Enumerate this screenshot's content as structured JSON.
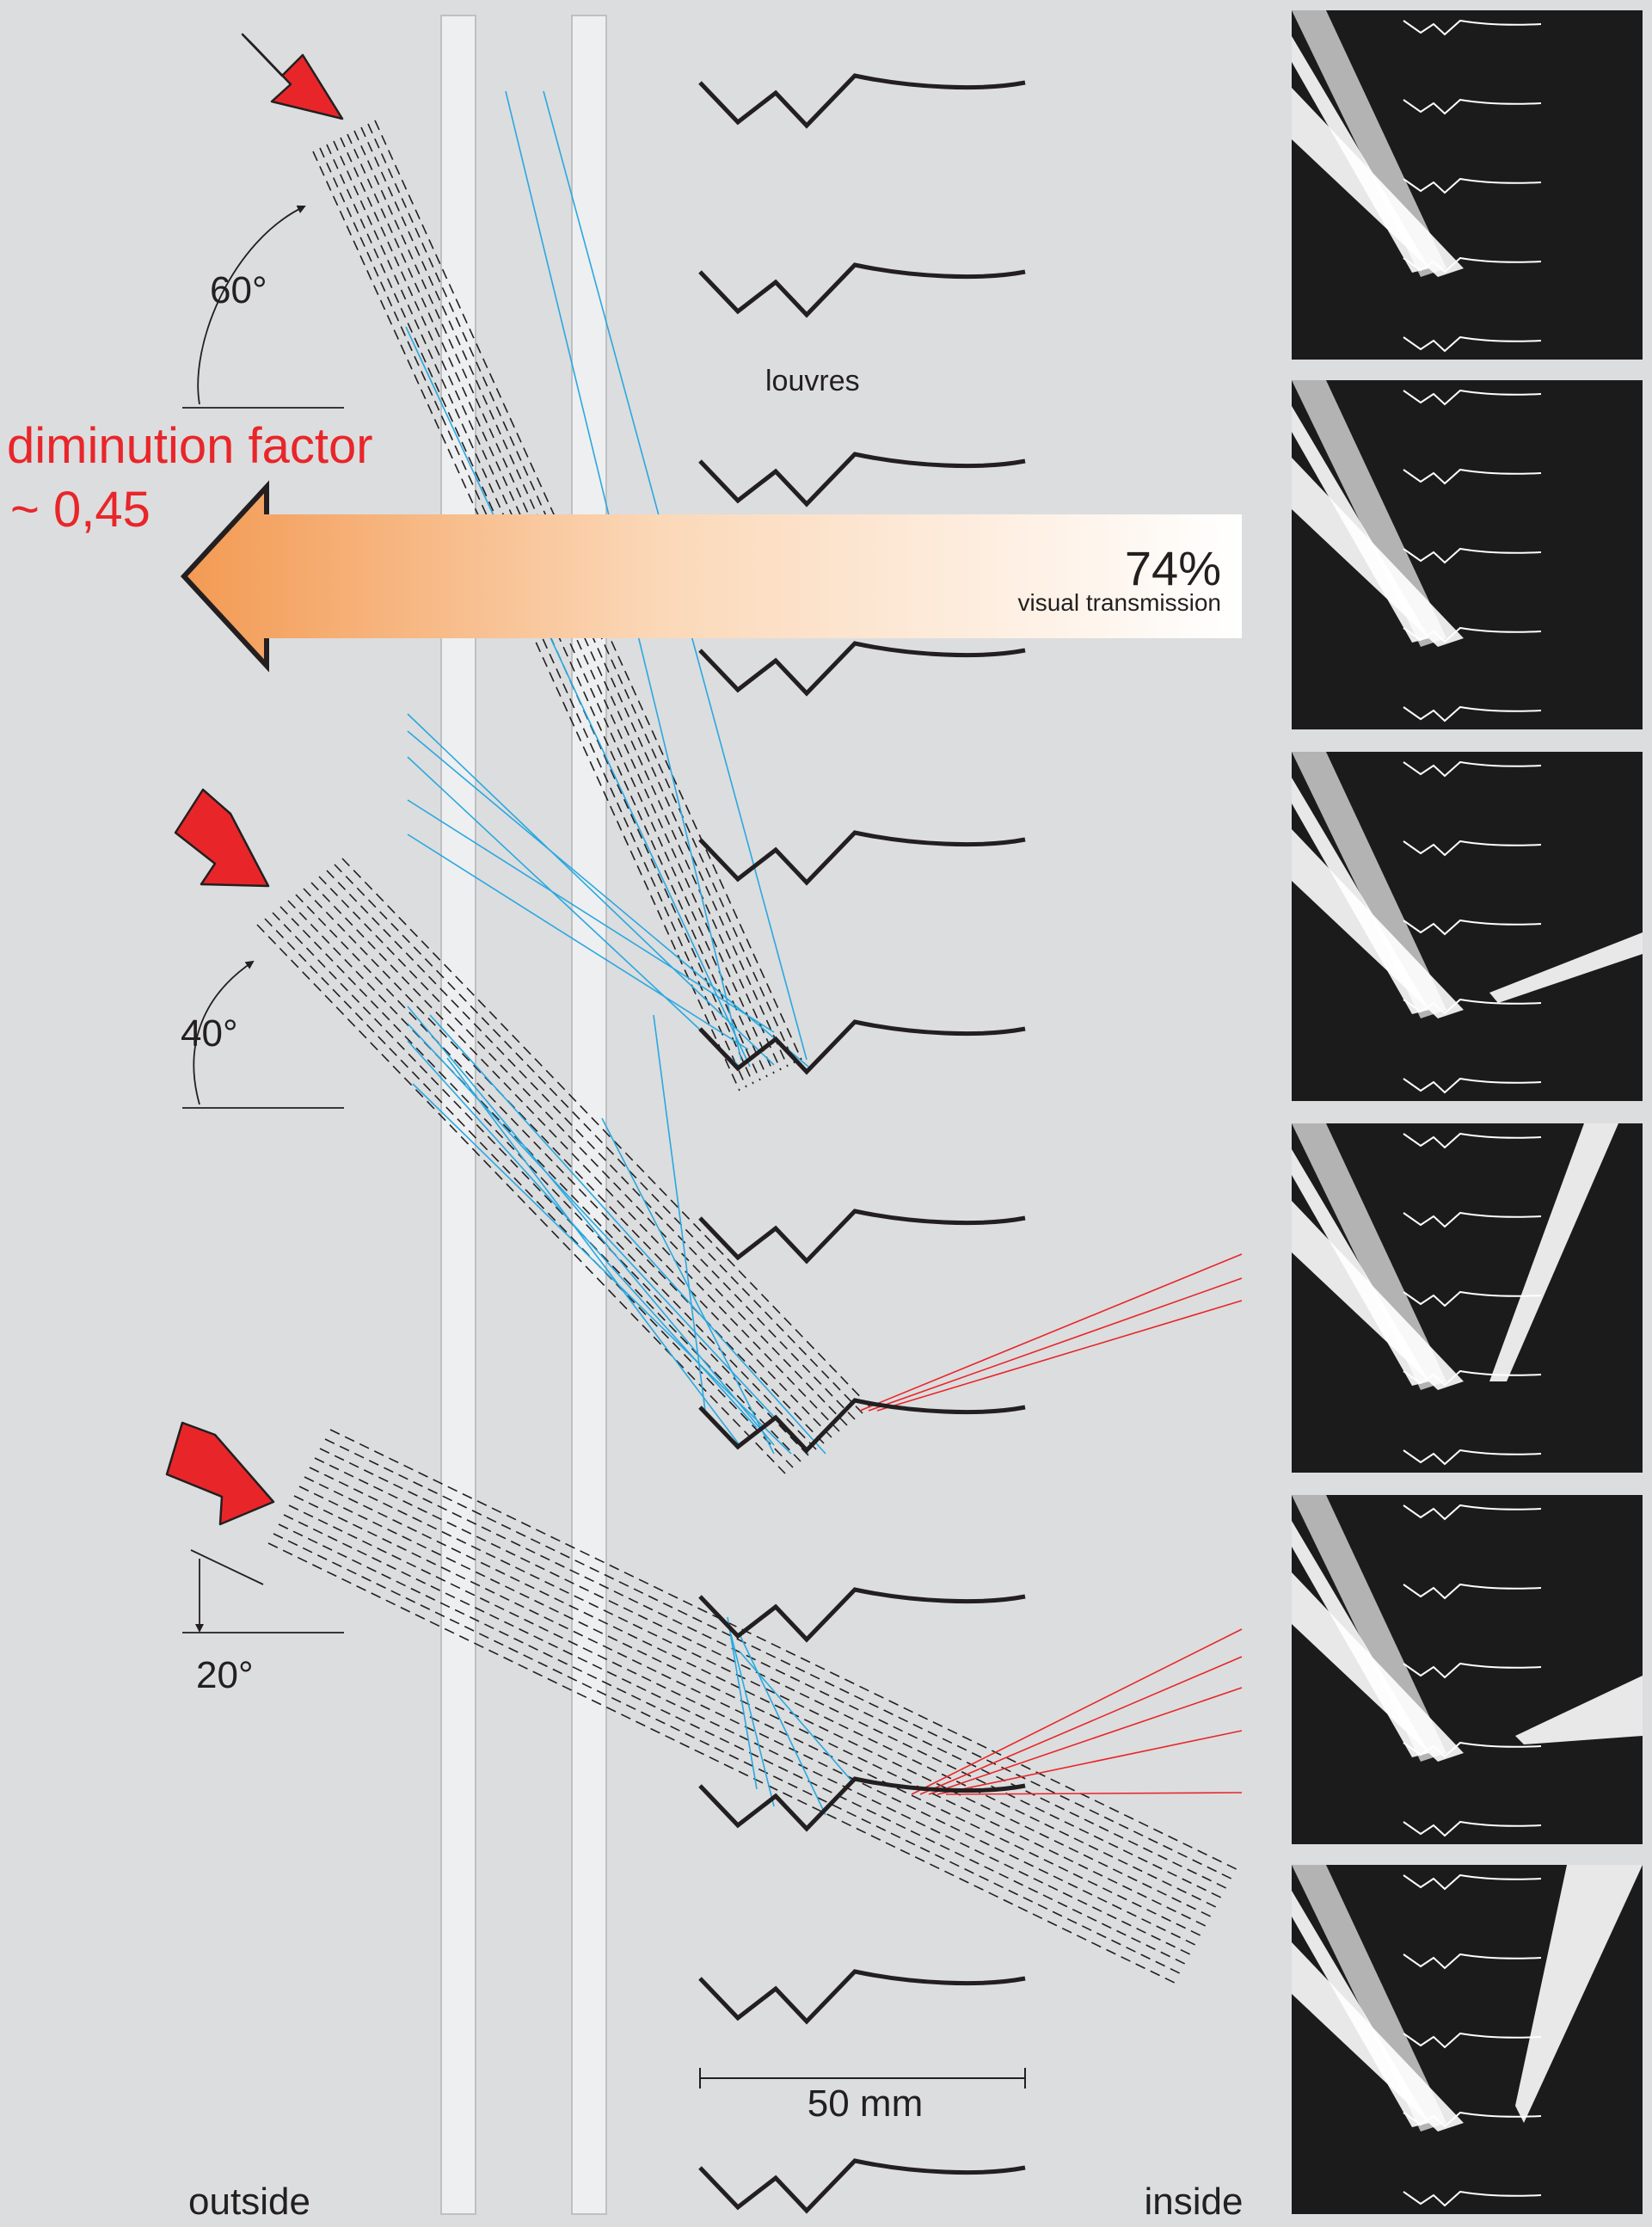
{
  "labels": {
    "diminution_factor": "diminution factor",
    "diminution_value": "~ 0,45",
    "transmission_percent": "74%",
    "transmission_label": "visual transmission",
    "louvres": "louvres",
    "scale": "50 mm",
    "outside": "outside",
    "inside": "inside"
  },
  "angles": [
    {
      "label": "60°",
      "degrees": 60
    },
    {
      "label": "40°",
      "degrees": 40
    },
    {
      "label": "20°",
      "degrees": 20
    }
  ],
  "colors": {
    "background": "#dcddde",
    "sun_arrow": "#e8262a",
    "diminution_text": "#e8262a",
    "transmission_gradient_start": "#f39a53",
    "transmission_gradient_end": "#ffffff",
    "ray_blue": "#29a8e0",
    "ray_red": "#e8262a",
    "ray_dashed": "#231f20",
    "glass_pane": "#eeeff0",
    "panel_background": "#1b1b1b",
    "panel_light": "#ffffff",
    "panel_grey": "#c4c4c4"
  },
  "icons": {
    "sun_arrow": "arrow-down-right",
    "transmission_arrow": "arrow-left"
  },
  "panels_count": 6,
  "louvre_count": 12
}
